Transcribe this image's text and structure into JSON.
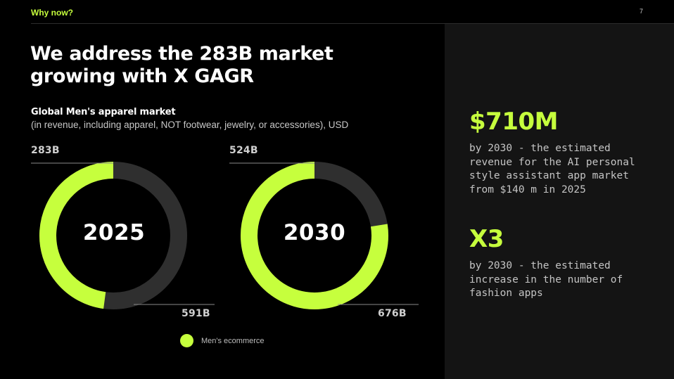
{
  "header": {
    "section_label": "Why now?",
    "page_number": "7"
  },
  "headline": "We address the 283B market growing with X GAGR",
  "chart_data": {
    "type": "pie",
    "variant": "donut",
    "title": "Global Men's apparel market",
    "subtitle": "(in revenue, including apparel, NOT footwear, jewelry, or accessories), USD",
    "unit": "B USD",
    "charts": [
      {
        "year": "2025",
        "highlight_value": 283,
        "highlight_label": "283B",
        "total_value": 591,
        "total_label": "591B"
      },
      {
        "year": "2030",
        "highlight_value": 524,
        "highlight_label": "524B",
        "total_value": 676,
        "total_label": "676B"
      }
    ],
    "legend": [
      {
        "label": "Men's ecommerce",
        "color": "#c6ff3d"
      }
    ],
    "colors": {
      "highlight": "#c6ff3d",
      "remainder": "#2f2f2f"
    }
  },
  "stats": [
    {
      "value": "$710M",
      "desc": "by 2030 - the estimated revenue for the AI personal style assistant app market from $140 m in 2025"
    },
    {
      "value": "X3",
      "desc": "by 2030 - the estimated increase in the number of fashion apps"
    }
  ],
  "colors": {
    "accent": "#c6ff3d",
    "background": "#000000",
    "panel": "#141414"
  }
}
